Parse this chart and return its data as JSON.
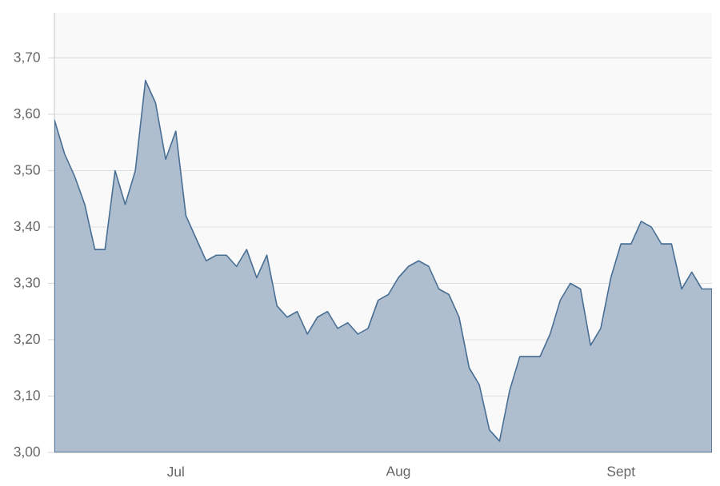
{
  "chart_data": {
    "type": "area",
    "categories": [
      null,
      null,
      null,
      null,
      null,
      null,
      null,
      null,
      null,
      null,
      null,
      null,
      "Jul",
      null,
      null,
      null,
      null,
      null,
      null,
      null,
      null,
      null,
      null,
      null,
      null,
      null,
      null,
      null,
      null,
      null,
      null,
      null,
      null,
      null,
      "Aug",
      null,
      null,
      null,
      null,
      null,
      null,
      null,
      null,
      null,
      null,
      null,
      null,
      null,
      null,
      null,
      null,
      null,
      null,
      null,
      null,
      null,
      "Sept",
      null,
      null,
      null,
      null,
      null,
      null,
      null,
      null,
      null
    ],
    "values": [
      3.59,
      3.53,
      3.49,
      3.44,
      3.36,
      3.36,
      3.5,
      3.44,
      3.5,
      3.66,
      3.62,
      3.52,
      3.57,
      3.42,
      3.38,
      3.34,
      3.35,
      3.35,
      3.33,
      3.36,
      3.31,
      3.35,
      3.26,
      3.24,
      3.25,
      3.21,
      3.24,
      3.25,
      3.22,
      3.23,
      3.21,
      3.22,
      3.27,
      3.28,
      3.31,
      3.33,
      3.34,
      3.33,
      3.29,
      3.28,
      3.24,
      3.15,
      3.12,
      3.04,
      3.02,
      3.11,
      3.17,
      3.17,
      3.17,
      3.21,
      3.27,
      3.3,
      3.29,
      3.19,
      3.22,
      3.31,
      3.37,
      3.37,
      3.41,
      3.4,
      3.37,
      3.37,
      3.29,
      3.32,
      3.29,
      3.29
    ],
    "color": "#4a6f94",
    "ylim": [
      3.0,
      3.78
    ],
    "yticks": [
      {
        "value": 3.0,
        "label": "3,00"
      },
      {
        "value": 3.1,
        "label": "3,10"
      },
      {
        "value": 3.2,
        "label": "3,20"
      },
      {
        "value": 3.3,
        "label": "3,30"
      },
      {
        "value": 3.4,
        "label": "3,40"
      },
      {
        "value": 3.5,
        "label": "3,50"
      },
      {
        "value": 3.6,
        "label": "3,60"
      },
      {
        "value": 3.7,
        "label": "3,70"
      }
    ],
    "grid": "y"
  }
}
